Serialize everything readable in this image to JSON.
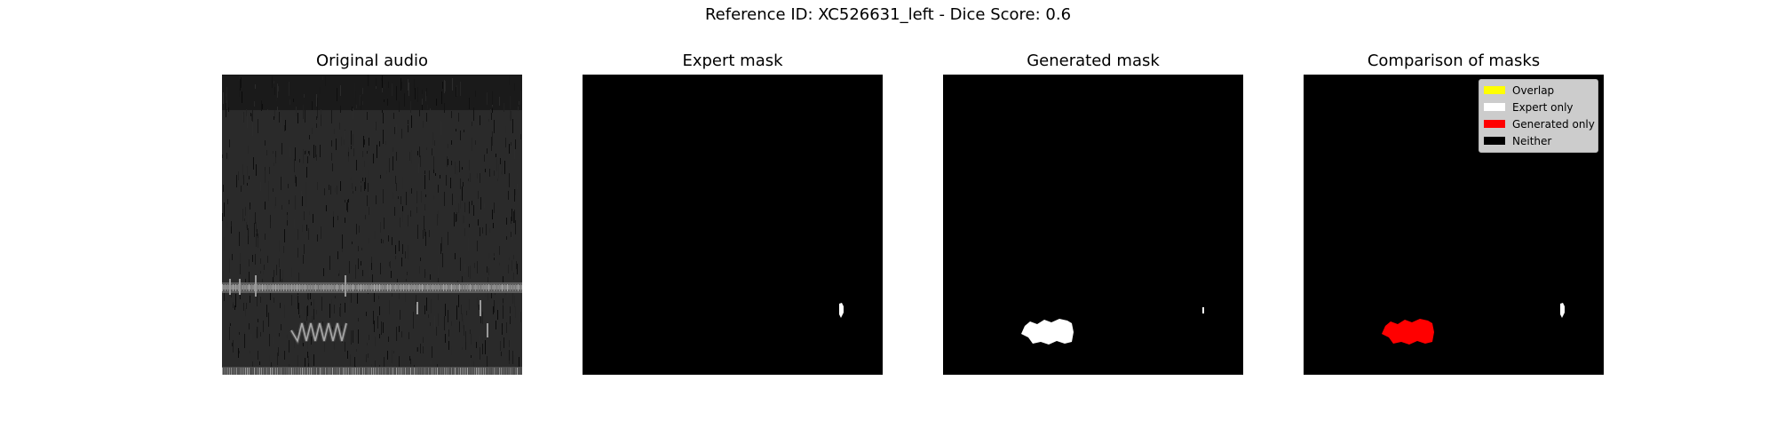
{
  "figure": {
    "suptitle": "Reference ID: XC526631_left - Dice Score: 0.6"
  },
  "panels": [
    {
      "title": "Original audio"
    },
    {
      "title": "Expert mask"
    },
    {
      "title": "Generated mask"
    },
    {
      "title": "Comparison of masks"
    }
  ],
  "legend": {
    "placement": "top-right",
    "items": [
      {
        "label": "Overlap",
        "color": "#ffff00"
      },
      {
        "label": "Expert only",
        "color": "#ffffff"
      },
      {
        "label": "Generated only",
        "color": "#ff0000"
      },
      {
        "label": "Neither",
        "color": "#000000"
      }
    ]
  },
  "colors": {
    "mask_region": "#ffffff",
    "generated_only": "#ff0000",
    "background": "#000000"
  }
}
